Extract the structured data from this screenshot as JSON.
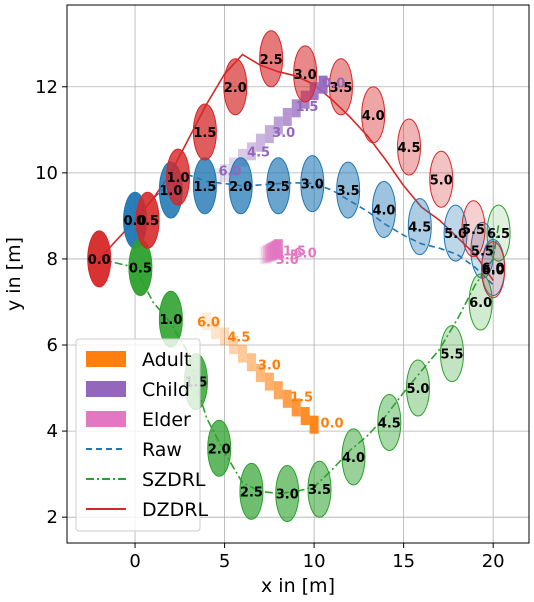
{
  "chart_data": {
    "type": "scatter",
    "xlabel": "x in [m]",
    "ylabel": "y in [m]",
    "xlim": [
      -3.8,
      22.0
    ],
    "ylim": [
      1.4,
      13.9
    ],
    "xticks": [
      0,
      5,
      10,
      15,
      20
    ],
    "yticks": [
      2,
      4,
      6,
      8,
      10,
      12
    ],
    "grid": true,
    "legend_position": "lower-left",
    "colors": {
      "adult": "#ff7f0e",
      "child": "#9467bd",
      "elder": "#e377c2",
      "raw": "#1f77b4",
      "szdrl": "#2ca02c",
      "dzdrl": "#d62728"
    },
    "legend": [
      {
        "key": "adult",
        "label": "Adult",
        "kind": "patch"
      },
      {
        "key": "child",
        "label": "Child",
        "kind": "patch"
      },
      {
        "key": "elder",
        "label": "Elder",
        "kind": "patch"
      },
      {
        "key": "raw",
        "label": "Raw",
        "kind": "dashed"
      },
      {
        "key": "szdrl",
        "label": "SZDRL",
        "kind": "dashdot"
      },
      {
        "key": "dzdrl",
        "label": "DZDRL",
        "kind": "solid"
      }
    ],
    "pedestrians": [
      {
        "key": "adult",
        "label_color": "#ff7f0e",
        "points": [
          [
            10.0,
            4.15
          ],
          [
            9.5,
            4.35
          ],
          [
            9.0,
            4.55
          ],
          [
            8.5,
            4.75
          ],
          [
            8.0,
            4.95
          ],
          [
            7.5,
            5.15
          ],
          [
            7.0,
            5.35
          ],
          [
            6.5,
            5.6
          ],
          [
            6.0,
            5.8
          ],
          [
            5.5,
            6.0
          ],
          [
            5.0,
            6.2
          ],
          [
            4.5,
            6.35
          ],
          [
            4.0,
            6.55
          ]
        ],
        "labels": [
          {
            "t": "0.0",
            "x": 11.0,
            "y": 4.2
          },
          {
            "t": "1.5",
            "x": 9.3,
            "y": 4.8
          },
          {
            "t": "3.0",
            "x": 7.5,
            "y": 5.55
          },
          {
            "t": "4.5",
            "x": 5.8,
            "y": 6.2
          },
          {
            "t": "6.0",
            "x": 4.1,
            "y": 6.55
          }
        ]
      },
      {
        "key": "child",
        "label_color": "#9467bd",
        "points": [
          [
            10.5,
            12.05
          ],
          [
            10.0,
            11.9
          ],
          [
            9.5,
            11.7
          ],
          [
            9.0,
            11.5
          ],
          [
            8.5,
            11.3
          ],
          [
            8.0,
            11.1
          ],
          [
            7.5,
            10.9
          ],
          [
            7.0,
            10.7
          ],
          [
            6.5,
            10.5
          ],
          [
            6.0,
            10.35
          ],
          [
            5.5,
            10.15
          ],
          [
            5.0,
            10.0
          ],
          [
            4.6,
            9.9
          ]
        ],
        "labels": [
          {
            "t": "0.0",
            "x": 11.1,
            "y": 12.1
          },
          {
            "t": "1.5",
            "x": 9.6,
            "y": 11.55
          },
          {
            "t": "3.0",
            "x": 8.3,
            "y": 10.95
          },
          {
            "t": "4.5",
            "x": 6.9,
            "y": 10.5
          },
          {
            "t": "6.0",
            "x": 5.3,
            "y": 10.05
          }
        ]
      },
      {
        "key": "elder",
        "label_color": "#e377c2",
        "points": [
          [
            8.0,
            8.25
          ],
          [
            7.9,
            8.22
          ],
          [
            7.8,
            8.2
          ],
          [
            7.7,
            8.18
          ],
          [
            7.6,
            8.16
          ],
          [
            7.5,
            8.14
          ],
          [
            7.4,
            8.12
          ],
          [
            7.3,
            8.1
          ],
          [
            7.2,
            8.08
          ]
        ],
        "labels": [
          {
            "t": "6.0",
            "x": 9.5,
            "y": 8.15
          },
          {
            "t": "4.5",
            "x": 8.5,
            "y": 8.1
          },
          {
            "t": "1.5",
            "x": 8.9,
            "y": 8.2
          },
          {
            "t": "3.0",
            "x": 8.5,
            "y": 8.0
          }
        ]
      }
    ],
    "robots": [
      {
        "key": "raw",
        "style": "dashed",
        "points": [
          [
            0,
            8.9
          ],
          [
            1,
            9.4
          ],
          [
            2,
            9.8
          ],
          [
            3,
            9.95
          ],
          [
            4,
            9.8
          ],
          [
            5,
            9.75
          ],
          [
            6,
            9.7
          ],
          [
            7,
            9.72
          ],
          [
            8,
            9.75
          ],
          [
            9,
            9.77
          ],
          [
            10,
            9.75
          ],
          [
            11,
            9.6
          ],
          [
            12,
            9.35
          ],
          [
            13,
            9.1
          ],
          [
            14,
            8.8
          ],
          [
            15,
            8.55
          ],
          [
            16,
            8.35
          ],
          [
            17,
            8.25
          ],
          [
            18,
            8.1
          ],
          [
            19,
            7.8
          ],
          [
            20,
            7.4
          ]
        ],
        "ellipses": [
          {
            "t": "0.0",
            "x": 0.0,
            "y": 8.9
          },
          {
            "t": "1.0",
            "x": 2.0,
            "y": 9.6
          },
          {
            "t": "1.5",
            "x": 3.9,
            "y": 9.7
          },
          {
            "t": "2.0",
            "x": 5.9,
            "y": 9.7
          },
          {
            "t": "2.5",
            "x": 8.0,
            "y": 9.7
          },
          {
            "t": "3.0",
            "x": 9.9,
            "y": 9.75
          },
          {
            "t": "3.5",
            "x": 11.9,
            "y": 9.6
          },
          {
            "t": "4.0",
            "x": 13.9,
            "y": 9.15
          },
          {
            "t": "4.5",
            "x": 15.9,
            "y": 8.75
          },
          {
            "t": "5.0",
            "x": 17.9,
            "y": 8.6
          },
          {
            "t": "5.5",
            "x": 19.4,
            "y": 8.2
          },
          {
            "t": "6.0",
            "x": 20.0,
            "y": 7.8
          }
        ]
      },
      {
        "key": "szdrl",
        "style": "dashdot",
        "points": [
          [
            -2,
            8.0
          ],
          [
            0,
            7.8
          ],
          [
            1,
            7.0
          ],
          [
            2,
            6.5
          ],
          [
            3,
            5.8
          ],
          [
            3.4,
            5.1
          ],
          [
            4,
            4.3
          ],
          [
            5,
            3.5
          ],
          [
            6,
            2.8
          ],
          [
            7,
            2.6
          ],
          [
            8,
            2.55
          ],
          [
            9,
            2.6
          ],
          [
            10,
            2.7
          ],
          [
            11,
            3.1
          ],
          [
            12,
            3.55
          ],
          [
            13,
            3.9
          ],
          [
            14,
            4.35
          ],
          [
            15,
            4.9
          ],
          [
            16,
            5.4
          ],
          [
            17,
            5.9
          ],
          [
            18,
            6.6
          ],
          [
            19,
            7.4
          ],
          [
            20,
            8.0
          ],
          [
            20.3,
            8.8
          ]
        ],
        "ellipses": [
          {
            "t": "0.5",
            "x": 0.3,
            "y": 7.8
          },
          {
            "t": "1.0",
            "x": 2.0,
            "y": 6.6
          },
          {
            "t": "1.5",
            "x": 3.4,
            "y": 5.15
          },
          {
            "t": "2.0",
            "x": 4.7,
            "y": 3.6
          },
          {
            "t": "2.5",
            "x": 6.5,
            "y": 2.6
          },
          {
            "t": "3.0",
            "x": 8.5,
            "y": 2.55
          },
          {
            "t": "3.5",
            "x": 10.3,
            "y": 2.65
          },
          {
            "t": "4.0",
            "x": 12.2,
            "y": 3.4
          },
          {
            "t": "4.5",
            "x": 14.2,
            "y": 4.2
          },
          {
            "t": "5.0",
            "x": 15.8,
            "y": 5.0
          },
          {
            "t": "5.5",
            "x": 17.7,
            "y": 5.8
          },
          {
            "t": "6.0",
            "x": 19.3,
            "y": 7.0
          },
          {
            "t": "6.5",
            "x": 20.3,
            "y": 8.6
          }
        ]
      },
      {
        "key": "dzdrl",
        "style": "solid",
        "points": [
          [
            -2,
            8.0
          ],
          [
            -1,
            8.45
          ],
          [
            0,
            8.9
          ],
          [
            1,
            9.4
          ],
          [
            2,
            10.0
          ],
          [
            3,
            10.8
          ],
          [
            4,
            11.6
          ],
          [
            5,
            12.3
          ],
          [
            6,
            12.75
          ],
          [
            7,
            12.5
          ],
          [
            8,
            12.35
          ],
          [
            9,
            12.25
          ],
          [
            10,
            12.05
          ],
          [
            11,
            11.7
          ],
          [
            12,
            11.3
          ],
          [
            13,
            10.85
          ],
          [
            14,
            10.3
          ],
          [
            15,
            9.7
          ],
          [
            16,
            9.2
          ],
          [
            17,
            8.9
          ],
          [
            18,
            8.5
          ],
          [
            19,
            8.1
          ],
          [
            20,
            7.5
          ]
        ],
        "ellipses": [
          {
            "t": "0.0",
            "x": -2.0,
            "y": 8.0
          },
          {
            "t": "0.5",
            "x": 0.7,
            "y": 8.9
          },
          {
            "t": "1.0",
            "x": 2.4,
            "y": 9.9
          },
          {
            "t": "1.5",
            "x": 3.9,
            "y": 10.95
          },
          {
            "t": "2.0",
            "x": 5.6,
            "y": 12.0
          },
          {
            "t": "2.5",
            "x": 7.6,
            "y": 12.65
          },
          {
            "t": "3.0",
            "x": 9.5,
            "y": 12.3
          },
          {
            "t": "3.5",
            "x": 11.5,
            "y": 12.0
          },
          {
            "t": "4.0",
            "x": 13.3,
            "y": 11.35
          },
          {
            "t": "4.5",
            "x": 15.3,
            "y": 10.6
          },
          {
            "t": "5.0",
            "x": 17.1,
            "y": 9.85
          },
          {
            "t": "5.5",
            "x": 18.9,
            "y": 8.7
          },
          {
            "t": "6.0",
            "x": 20.0,
            "y": 7.75
          }
        ]
      }
    ]
  }
}
